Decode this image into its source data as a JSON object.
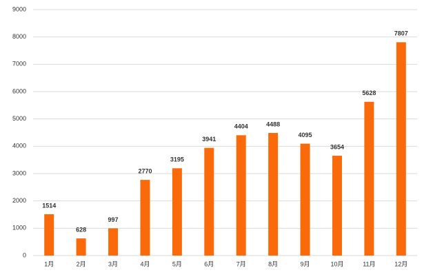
{
  "chart_data": {
    "type": "bar",
    "categories": [
      "1月",
      "2月",
      "3月",
      "4月",
      "5月",
      "6月",
      "7月",
      "8月",
      "9月",
      "10月",
      "11月",
      "12月"
    ],
    "values": [
      1514,
      628,
      997,
      2770,
      3195,
      3941,
      4404,
      4488,
      4095,
      3654,
      5628,
      7807
    ],
    "color": "#fa6a0a",
    "ylim": [
      0,
      9000
    ],
    "yticks": [
      0,
      1000,
      2000,
      3000,
      4000,
      5000,
      6000,
      7000,
      8000,
      9000
    ],
    "grid": true,
    "data_labels": true
  }
}
